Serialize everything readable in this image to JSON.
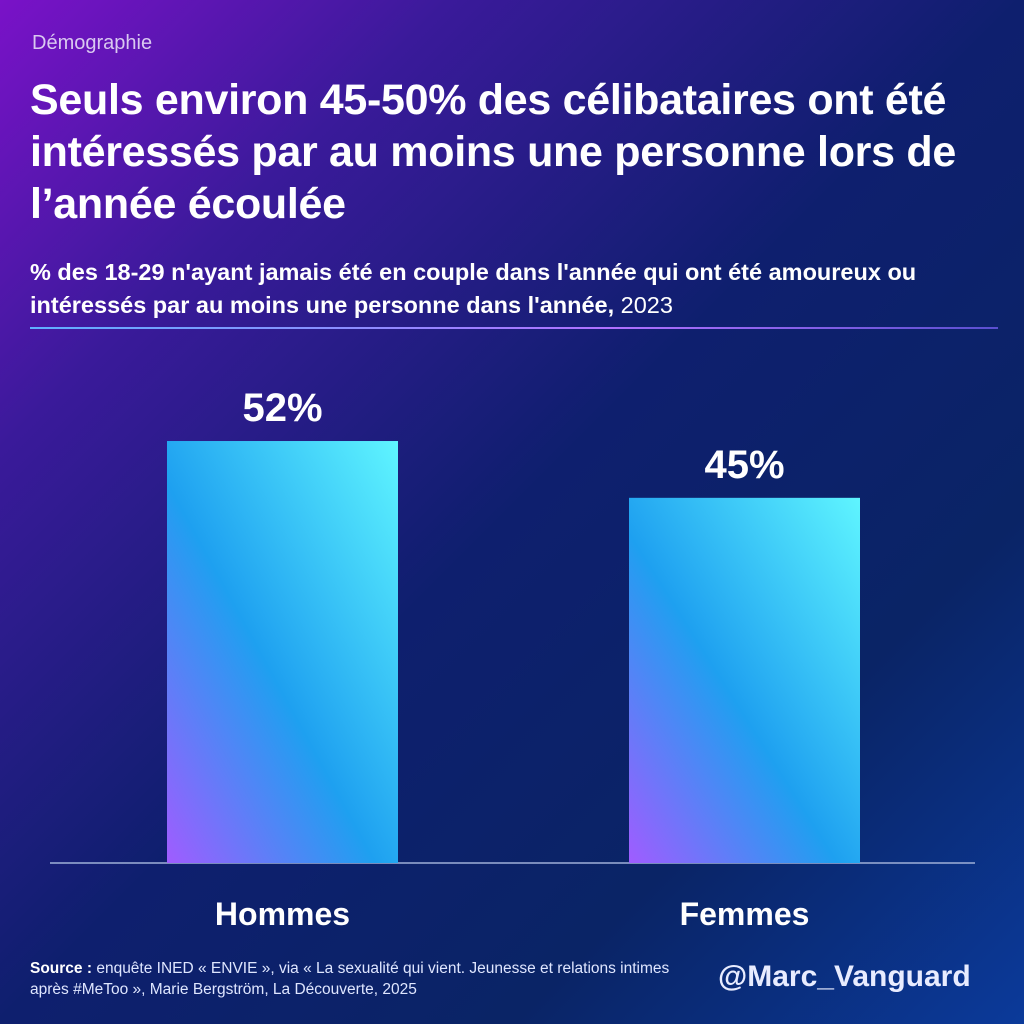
{
  "category": "Démographie",
  "title": "Seuls environ 45-50% des célibataires ont été intéressés par au moins une personne lors de l’année écoulée",
  "subtitle": "% des 18-29 n'ayant jamais été en couple dans l'année qui ont été amoureux ou intéressés par au moins une personne dans l'année,",
  "subtitle_year": "2023",
  "source_label": "Source :",
  "source_text": "enquête INED « ENVIE », via « La sexualité qui vient. Jeunesse et relations intimes après #MeToo », Marie Bergström, La Découverte, 2025",
  "handle": "@Marc_Vanguard",
  "chart_data": {
    "type": "bar",
    "categories": [
      "Hommes",
      "Femmes"
    ],
    "values": [
      52,
      45
    ],
    "data_labels": [
      "52%",
      "45%"
    ],
    "unit": "%",
    "ylim": [
      0,
      100
    ],
    "grid": false,
    "bar_gradient": [
      "#a05cff",
      "#1ea0f0",
      "#5ff5ff"
    ]
  }
}
